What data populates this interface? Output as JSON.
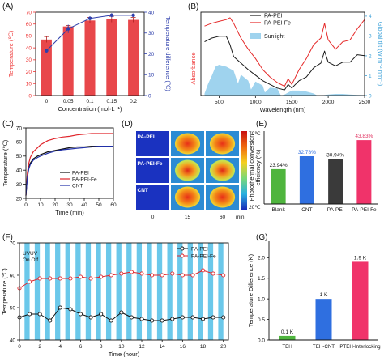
{
  "figure": {
    "panels": [
      "(A)",
      "(B)",
      "(C)",
      "(D)",
      "(E)",
      "(F)",
      "(G)"
    ]
  },
  "chart_data": [
    {
      "id": "A",
      "type": "bar",
      "xlabel": "Concentration (mol·L⁻¹)",
      "ylabel": "Temperature (℃)",
      "y2label": "Temperature difference (℃)",
      "categories": [
        "0",
        "0.05",
        "0.1",
        "0.15",
        "0.2"
      ],
      "ylim": [
        0,
        70
      ],
      "yticks": [
        "0",
        "10",
        "20",
        "30",
        "40",
        "50",
        "60",
        "70"
      ],
      "y2lim": [
        0,
        40
      ],
      "y2ticks": [
        "0",
        "10",
        "20",
        "30",
        "40"
      ],
      "series": [
        {
          "axis": "left",
          "kind": "bar",
          "color": "#e8474b",
          "values": [
            47,
            58,
            63,
            64,
            63.5
          ],
          "errors": [
            2.5,
            0.8,
            2.5,
            2.5,
            2
          ]
        },
        {
          "axis": "right",
          "kind": "line",
          "color": "#2d3eab",
          "values": [
            21.5,
            32,
            37,
            38.5,
            38.5
          ],
          "errors": [
            1,
            2,
            1,
            1,
            0.5
          ]
        }
      ]
    },
    {
      "id": "B",
      "type": "line",
      "xlabel": "Wavelength (nm)",
      "ylabel": "Absorbance",
      "y2label": "Global tilt (W m⁻² nm⁻¹)",
      "xlim": [
        250,
        2500
      ],
      "xticks": [
        "500",
        "1000",
        "1500",
        "2000",
        "2500"
      ],
      "y2ticks": [
        "0",
        "1",
        "2",
        "3",
        "4"
      ],
      "y2lim": [
        0,
        4.2
      ],
      "series": [
        {
          "name": "PA-PEI",
          "color": "#1a1a1a",
          "x": [
            300,
            400,
            500,
            600,
            650,
            700,
            800,
            900,
            1000,
            1100,
            1200,
            1300,
            1400,
            1450,
            1500,
            1600,
            1700,
            1800,
            1900,
            1950,
            2000,
            2100,
            2200,
            2300,
            2400,
            2500
          ],
          "y": [
            0.58,
            0.62,
            0.64,
            0.64,
            0.55,
            0.42,
            0.35,
            0.28,
            0.22,
            0.16,
            0.12,
            0.08,
            0.06,
            0.12,
            0.08,
            0.16,
            0.2,
            0.3,
            0.35,
            0.48,
            0.36,
            0.32,
            0.36,
            0.36,
            0.44,
            0.43
          ]
        },
        {
          "name": "PA-PEI-Fe",
          "color": "#e52a2a",
          "x": [
            300,
            400,
            500,
            600,
            650,
            700,
            800,
            900,
            1000,
            1100,
            1200,
            1300,
            1400,
            1450,
            1500,
            1600,
            1700,
            1800,
            1900,
            1950,
            2000,
            2100,
            2200,
            2300,
            2400,
            2500
          ],
          "y": [
            0.75,
            0.78,
            0.8,
            0.82,
            0.84,
            0.78,
            0.62,
            0.5,
            0.4,
            0.28,
            0.2,
            0.14,
            0.1,
            0.18,
            0.12,
            0.28,
            0.4,
            0.55,
            0.62,
            0.78,
            0.6,
            0.5,
            0.58,
            0.6,
            0.72,
            0.82
          ]
        }
      ],
      "fill_series": {
        "name": "Sunlight",
        "color": "#9fd3ee",
        "x": [
          300,
          350,
          400,
          450,
          500,
          550,
          600,
          700,
          760,
          800,
          900,
          940,
          1000,
          1100,
          1130,
          1200,
          1300,
          1350,
          1400,
          1500,
          1600,
          1700,
          1800,
          1850,
          1900,
          2000,
          2100,
          2200,
          2300,
          2400,
          2500
        ],
        "y": [
          0.1,
          0.6,
          1.0,
          1.45,
          1.55,
          1.5,
          1.45,
          1.25,
          0.6,
          1.05,
          0.75,
          0.3,
          0.7,
          0.5,
          0.15,
          0.4,
          0.35,
          0.0,
          0.05,
          0.25,
          0.25,
          0.2,
          0.1,
          0.0,
          0.0,
          0.05,
          0.08,
          0.08,
          0.05,
          0.03,
          0.02
        ]
      }
    },
    {
      "id": "C",
      "type": "line",
      "xlabel": "Time (min)",
      "ylabel": "Temperature (℃)",
      "xlim": [
        0,
        60
      ],
      "xticks": [
        "0",
        "10",
        "20",
        "30",
        "40",
        "50",
        "60"
      ],
      "ylim": [
        20,
        70
      ],
      "yticks": [
        "20",
        "30",
        "40",
        "50",
        "60",
        "70"
      ],
      "series": [
        {
          "name": "PA-PEI",
          "color": "#111111",
          "x": [
            0,
            1,
            2,
            3,
            5,
            8,
            10,
            15,
            20,
            25,
            30,
            35,
            40,
            45,
            50,
            55,
            60
          ],
          "y": [
            22,
            36,
            42,
            45,
            48,
            50,
            51,
            53,
            54,
            55,
            56,
            56.5,
            56.5,
            57,
            57,
            57,
            57
          ]
        },
        {
          "name": "PA-PEI-Fe",
          "color": "#e0252b",
          "x": [
            0,
            1,
            2,
            3,
            5,
            8,
            10,
            15,
            20,
            25,
            30,
            35,
            40,
            45,
            50,
            55,
            60
          ],
          "y": [
            22,
            38,
            45,
            49,
            53,
            56,
            58,
            61,
            62.5,
            63.5,
            64,
            65,
            65.5,
            66,
            66,
            66,
            66
          ]
        },
        {
          "name": "CNT",
          "color": "#2130a8",
          "x": [
            0,
            1,
            2,
            3,
            5,
            8,
            10,
            15,
            20,
            25,
            30,
            35,
            40,
            45,
            50,
            55,
            60
          ],
          "y": [
            22,
            35,
            41,
            44,
            47,
            49,
            50,
            52,
            53.5,
            54.5,
            55,
            55.5,
            56,
            56.5,
            57,
            57,
            57
          ]
        }
      ]
    },
    {
      "id": "D",
      "type": "heatmap",
      "row_labels": [
        "PA-PEI",
        "PA-PEI-Fe",
        "CNT"
      ],
      "col_labels": [
        "0",
        "15",
        "60"
      ],
      "col_unit": "min",
      "colorbar_max": "70℃",
      "colorbar_min": "20℃"
    },
    {
      "id": "E",
      "type": "bar",
      "ylabel": "Photothermal conversion efficiency (%)",
      "categories": [
        "Blank",
        "CNT",
        "PA-PEI",
        "PA-PEI-Fe"
      ],
      "ylim": [
        0,
        50
      ],
      "values": [
        23.94,
        32.78,
        30.94,
        43.83
      ],
      "value_labels": [
        "23.94%",
        "32.78%",
        "30.94%",
        "43.83%"
      ],
      "colors": [
        "#4fb53e",
        "#2f6fe0",
        "#3a3a3a",
        "#f0336a"
      ]
    },
    {
      "id": "F",
      "type": "line",
      "xlabel": "Time (hour)",
      "ylabel": "Temperature (℃)",
      "xlim": [
        0,
        20.5
      ],
      "xticks": [
        "0",
        "2",
        "4",
        "6",
        "8",
        "10",
        "12",
        "14",
        "16",
        "18",
        "20"
      ],
      "ylim": [
        40,
        70
      ],
      "yticks": [
        "40",
        "50",
        "60",
        "70"
      ],
      "annotations": [
        "UVUV",
        "On Off"
      ],
      "band_color": "#6bc8ea",
      "series": [
        {
          "name": "PA-PEI",
          "color": "#111111",
          "x": [
            0,
            1,
            2,
            3,
            4,
            5,
            6,
            7,
            8,
            9,
            10,
            11,
            12,
            13,
            14,
            15,
            16,
            17,
            18,
            19,
            20
          ],
          "y": [
            47,
            48,
            48,
            46,
            50,
            49.5,
            48,
            47,
            48,
            46,
            48.5,
            47,
            46.5,
            46,
            46,
            46.5,
            47,
            47,
            46.5,
            47,
            47
          ]
        },
        {
          "name": "PA-PEI-Fe",
          "color": "#e0252b",
          "x": [
            0,
            1,
            2,
            3,
            4,
            5,
            6,
            7,
            8,
            9,
            10,
            11,
            12,
            13,
            14,
            15,
            16,
            17,
            18,
            19,
            20
          ],
          "y": [
            56,
            58,
            59,
            59,
            59,
            59,
            59.5,
            59,
            59.5,
            60,
            60.5,
            61,
            60.5,
            60,
            60,
            60.5,
            60,
            60,
            61.5,
            60.5,
            60
          ]
        }
      ]
    },
    {
      "id": "G",
      "type": "bar",
      "ylabel": "Temperature Difference (K)",
      "categories": [
        "TEH",
        "TEH-CNT",
        "PTEH-Interlocking"
      ],
      "ylim": [
        0,
        2.4
      ],
      "yticks": [
        "0.0",
        "0.5",
        "1.0",
        "1.5",
        "2.0"
      ],
      "values": [
        0.1,
        1.0,
        1.9
      ],
      "value_labels": [
        "0.1 K",
        "1 K",
        "1.9 K"
      ],
      "colors": [
        "#4fb53e",
        "#2f6fe0",
        "#f0336a"
      ]
    }
  ]
}
